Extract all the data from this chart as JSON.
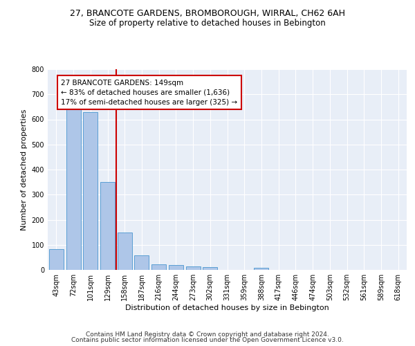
{
  "title": "27, BRANCOTE GARDENS, BROMBOROUGH, WIRRAL, CH62 6AH",
  "subtitle": "Size of property relative to detached houses in Bebington",
  "xlabel": "Distribution of detached houses by size in Bebington",
  "ylabel": "Number of detached properties",
  "bar_color": "#aec6e8",
  "bar_edge_color": "#5a9fd4",
  "background_color": "#e8eef7",
  "grid_color": "#ffffff",
  "categories": [
    "43sqm",
    "72sqm",
    "101sqm",
    "129sqm",
    "158sqm",
    "187sqm",
    "216sqm",
    "244sqm",
    "273sqm",
    "302sqm",
    "331sqm",
    "359sqm",
    "388sqm",
    "417sqm",
    "446sqm",
    "474sqm",
    "503sqm",
    "532sqm",
    "561sqm",
    "589sqm",
    "618sqm"
  ],
  "values": [
    82,
    660,
    630,
    350,
    148,
    58,
    22,
    20,
    15,
    10,
    0,
    0,
    8,
    0,
    0,
    0,
    0,
    0,
    0,
    0,
    0
  ],
  "ylim": [
    0,
    800
  ],
  "yticks": [
    0,
    100,
    200,
    300,
    400,
    500,
    600,
    700,
    800
  ],
  "annotation_text": "27 BRANCOTE GARDENS: 149sqm\n← 83% of detached houses are smaller (1,636)\n17% of semi-detached houses are larger (325) →",
  "annotation_box_color": "#ffffff",
  "annotation_box_edge_color": "#cc0000",
  "vline_color": "#cc0000",
  "footer_line1": "Contains HM Land Registry data © Crown copyright and database right 2024.",
  "footer_line2": "Contains public sector information licensed under the Open Government Licence v3.0.",
  "title_fontsize": 9,
  "subtitle_fontsize": 8.5,
  "xlabel_fontsize": 8,
  "ylabel_fontsize": 8,
  "tick_fontsize": 7,
  "annotation_fontsize": 7.5,
  "footer_fontsize": 6.5
}
